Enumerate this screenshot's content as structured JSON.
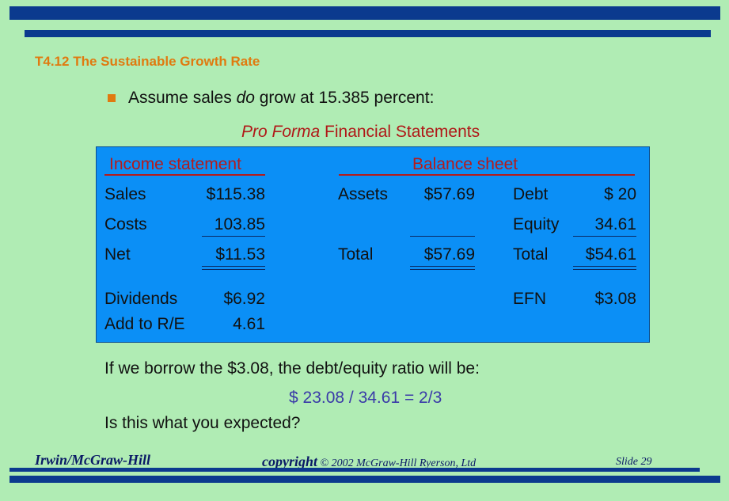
{
  "slide_title": "T4.12   The Sustainable Growth Rate",
  "bullet_text": {
    "pre": "Assume sales ",
    "em": "do",
    "post": " grow at 15.385 percent:"
  },
  "pro_forma": {
    "em": "Pro Forma",
    "rest": " Financial Statements"
  },
  "income_statement": {
    "header": "Income statement",
    "rows": [
      {
        "label": "Sales",
        "value": "$115.38"
      },
      {
        "label": "Costs",
        "value": "103.85"
      },
      {
        "label": "Net",
        "value": "$11.53"
      },
      {
        "label": "Dividends",
        "value": "$6.92"
      },
      {
        "label": "Add to R/E",
        "value": "4.61"
      }
    ]
  },
  "balance_sheet": {
    "header": "Balance sheet",
    "assets": [
      {
        "label": "Assets",
        "value": "$57.69"
      },
      {
        "label": "Total",
        "value": "$57.69"
      }
    ],
    "liabilities": [
      {
        "label": "Debt",
        "value": "$ 20"
      },
      {
        "label": "Equity",
        "value": "34.61"
      },
      {
        "label": "Total",
        "value": "$54.61"
      },
      {
        "label": "EFN",
        "value": "$3.08"
      }
    ]
  },
  "question": "If we borrow the $3.08, the debt/equity ratio will be:",
  "ratio": "$ 23.08 / 34.61 = 2/3",
  "expected": "Is this what you expected?",
  "footer": {
    "left": "Irwin/McGraw-Hill",
    "mid_big": "copyright",
    "mid_small": " © 2002 McGraw-Hill Ryerson, Ltd",
    "right": "Slide 29"
  },
  "colors": {
    "background": "#b0ecb4",
    "bar": "#0b3a8e",
    "accent_orange": "#e07a10",
    "box_blue": "#0b8ff6",
    "header_red": "#b51b1b",
    "ratio_blue": "#3a3aa8"
  }
}
